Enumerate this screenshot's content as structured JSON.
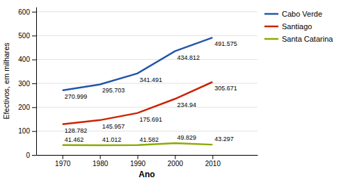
{
  "chart_data": {
    "type": "line",
    "x": [
      1970,
      1980,
      1990,
      2000,
      2010
    ],
    "series": [
      {
        "name": "Cabo Verde",
        "color": "#2255aa",
        "values": [
          270.999,
          295.703,
          341.491,
          434.812,
          491.575
        ]
      },
      {
        "name": "Santiago",
        "color": "#cc2200",
        "values": [
          128.782,
          145.957,
          175.691,
          234.94,
          305.671
        ]
      },
      {
        "name": "Santa Catarina",
        "color": "#88aa00",
        "values": [
          41.462,
          41.012,
          41.582,
          49.829,
          43.297
        ]
      }
    ],
    "x_label": "Ano",
    "y_label": "Efectivos, em milhares",
    "xlim": [
      1963,
      2022
    ],
    "xticks": [
      1970,
      1980,
      1990,
      2000,
      2010
    ],
    "ylim": [
      0,
      620
    ],
    "yticks": [
      0,
      100,
      200,
      300,
      400,
      500,
      600
    ],
    "grid": true,
    "legend": "right",
    "data_labels": true
  }
}
